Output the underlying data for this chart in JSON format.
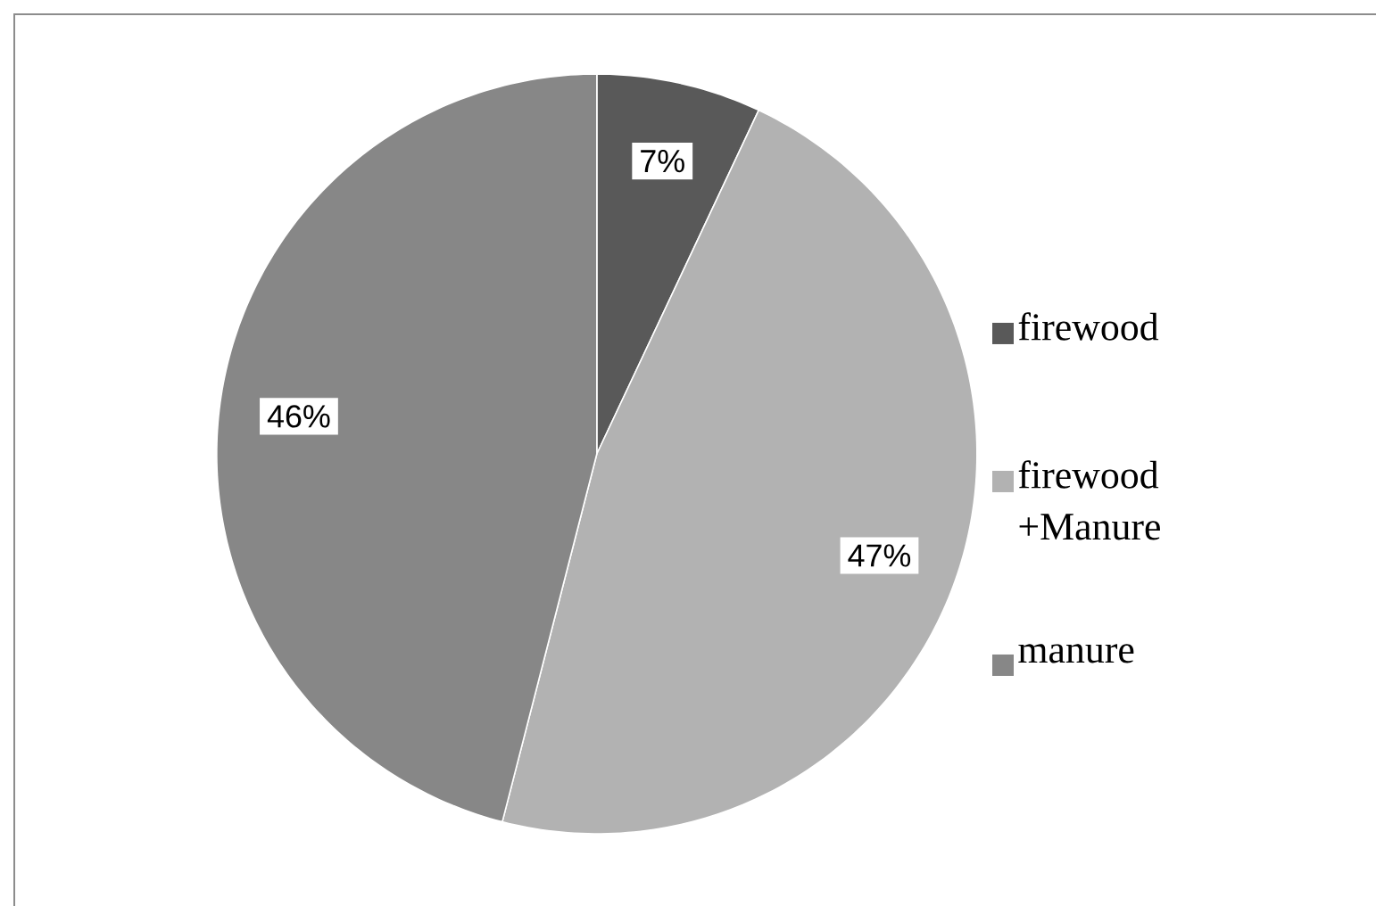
{
  "chart_data": {
    "type": "pie",
    "categories": [
      "firewood",
      "firewood +Manure",
      "manure"
    ],
    "values": [
      7,
      47,
      46
    ],
    "colors": [
      "#595959",
      "#b2b2b2",
      "#878787"
    ],
    "value_labels": [
      "7%",
      "47%",
      "46%"
    ],
    "legend": "right"
  }
}
